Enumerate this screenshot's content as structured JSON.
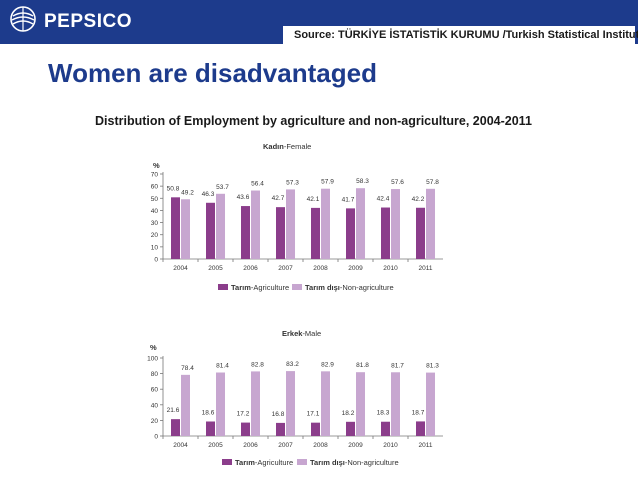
{
  "header": {
    "brand": "PEPSICO",
    "source": "Source: TÜRKİYE İSTATİSTİK KURUMU /Turkish Statistical Institute"
  },
  "title": "Women are disadvantaged",
  "subtitle": "Distribution of Employment by agriculture and non-agriculture, 2004-2011",
  "colors": {
    "agriculture": "#8b3d8b",
    "non_agriculture": "#c7a6d0",
    "brand": "#1d3b8c"
  },
  "chart_data": [
    {
      "type": "bar",
      "title_bold": "Kadın",
      "title_rest": "-Female",
      "ylabel": "%",
      "ylim": [
        0,
        70
      ],
      "yticks": [
        0,
        10,
        20,
        30,
        40,
        50,
        60,
        70
      ],
      "categories": [
        "2004",
        "2005",
        "2006",
        "2007",
        "2008",
        "2009",
        "2010",
        "2011"
      ],
      "series": [
        {
          "legend_bold": "Tarım",
          "legend_rest": "-Agriculture",
          "values": [
            50.8,
            46.3,
            43.6,
            42.7,
            42.1,
            41.7,
            42.4,
            42.2
          ],
          "color": "#8b3d8b"
        },
        {
          "legend_bold": "Tarım dışı",
          "legend_rest": "-Non-agriculture",
          "values": [
            49.2,
            53.7,
            56.4,
            57.3,
            57.9,
            58.3,
            57.6,
            57.8
          ],
          "color": "#c7a6d0"
        }
      ]
    },
    {
      "type": "bar",
      "title_bold": "Erkek",
      "title_rest": "-Male",
      "ylabel": "%",
      "ylim": [
        0,
        100
      ],
      "yticks": [
        0,
        20,
        40,
        60,
        80,
        100
      ],
      "categories": [
        "2004",
        "2005",
        "2006",
        "2007",
        "2008",
        "2009",
        "2010",
        "2011"
      ],
      "series": [
        {
          "legend_bold": "Tarım",
          "legend_rest": "-Agriculture",
          "values": [
            21.6,
            18.6,
            17.2,
            16.8,
            17.1,
            18.2,
            18.3,
            18.7
          ],
          "color": "#8b3d8b"
        },
        {
          "legend_bold": "Tarım dışı",
          "legend_rest": "-Non-agriculture",
          "values": [
            78.4,
            81.4,
            82.8,
            83.2,
            82.9,
            81.8,
            81.7,
            81.3
          ],
          "color": "#c7a6d0"
        }
      ]
    }
  ]
}
